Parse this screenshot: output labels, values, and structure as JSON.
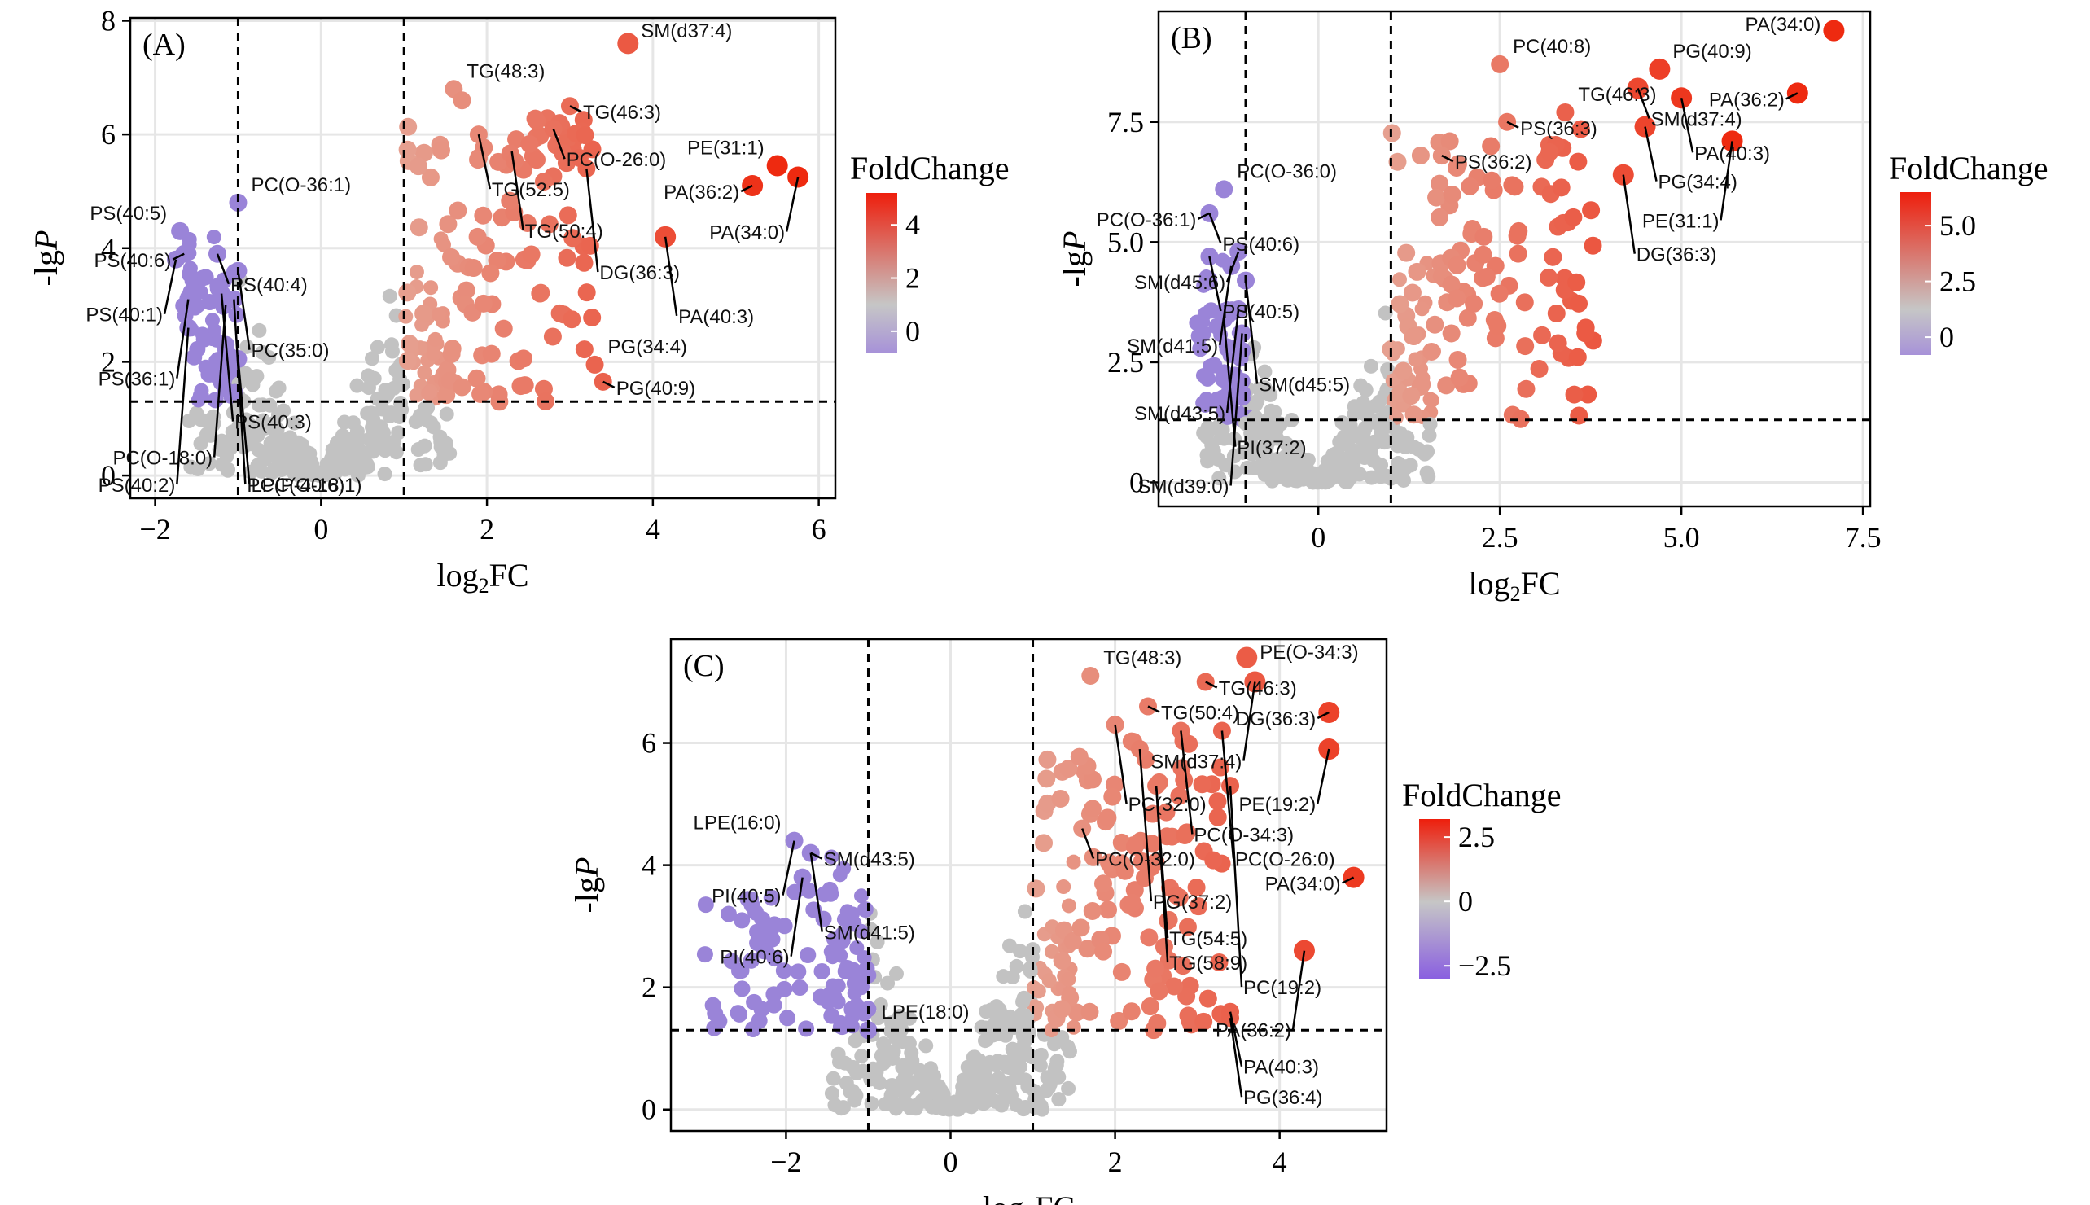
{
  "figure": {
    "x_label_base": "log",
    "x_label_sub": "2",
    "x_label_tail": "FC",
    "y_label_main": "-lg",
    "y_label_italic": "P"
  },
  "chart_data": [
    {
      "type": "scatter",
      "panel": "(A)",
      "xlim": [
        -2.3,
        6.2
      ],
      "ylim": [
        -0.4,
        8.05
      ],
      "xticks": [
        -2,
        0,
        2,
        4,
        6
      ],
      "xtick_labels": [
        "−2",
        "0",
        "2",
        "4",
        "6"
      ],
      "yticks": [
        0,
        2,
        4,
        6,
        8
      ],
      "ytick_labels": [
        "0",
        "2",
        "4",
        "6",
        "8"
      ],
      "thresholds": {
        "x": [
          -1,
          1
        ],
        "y": 1.3
      },
      "grid": true,
      "legend": {
        "title": "FoldChange",
        "placement": "right",
        "range": [
          -0.8,
          5.2
        ],
        "ticks": [
          0,
          2,
          4
        ],
        "tick_labels": [
          "0",
          "2",
          "4"
        ]
      },
      "points": [
        [
          3.7,
          7.6
        ],
        [
          2.8,
          6.1
        ],
        [
          3.0,
          6.5
        ],
        [
          3.2,
          5.4
        ],
        [
          1.6,
          6.8
        ],
        [
          1.7,
          6.6
        ],
        [
          1.9,
          6.0
        ],
        [
          5.5,
          5.45
        ],
        [
          5.2,
          5.1
        ],
        [
          5.75,
          5.25
        ],
        [
          4.15,
          4.2
        ],
        [
          3.3,
          1.95
        ],
        [
          3.4,
          1.65
        ],
        [
          -1.7,
          4.3
        ],
        [
          -1.65,
          3.9
        ],
        [
          -1.0,
          4.8
        ],
        [
          -1.75,
          3.8
        ],
        [
          -1.25,
          3.9
        ],
        [
          -1.0,
          3.6
        ],
        [
          -1.2,
          3.2
        ],
        [
          -1.05,
          3.1
        ],
        [
          -1.6,
          3.1
        ],
        [
          -1.6,
          2.6
        ],
        [
          -1.15,
          2.3
        ],
        [
          -1.0,
          2.05
        ]
      ],
      "labels": [
        {
          "text": "SM(d37:4)",
          "x": 3.7,
          "y": 7.6
        },
        {
          "text": "TG(48:3)",
          "x": 1.6,
          "y": 6.8
        },
        {
          "text": "TG(46:3)",
          "x": 3.0,
          "y": 6.5
        },
        {
          "text": "PC(O-26:0)",
          "x": 2.8,
          "y": 6.1
        },
        {
          "text": "TG(52:5)",
          "x": 1.9,
          "y": 6.0
        },
        {
          "text": "TG(50:4)",
          "x": 2.3,
          "y": 5.7
        },
        {
          "text": "DG(36:3)",
          "x": 3.2,
          "y": 5.4
        },
        {
          "text": "PE(31:1)",
          "x": 5.5,
          "y": 5.45
        },
        {
          "text": "PA(36:2)",
          "x": 5.2,
          "y": 5.1
        },
        {
          "text": "PA(34:0)",
          "x": 5.75,
          "y": 5.25
        },
        {
          "text": "PA(40:3)",
          "x": 4.15,
          "y": 4.2
        },
        {
          "text": "PG(34:4)",
          "x": 3.3,
          "y": 1.95
        },
        {
          "text": "PG(40:9)",
          "x": 3.4,
          "y": 1.65
        },
        {
          "text": "PS(40:5)",
          "x": -1.7,
          "y": 4.3
        },
        {
          "text": "PC(O-36:1)",
          "x": -1.0,
          "y": 4.8
        },
        {
          "text": "PS(40:6)",
          "x": -1.65,
          "y": 3.9
        },
        {
          "text": "PS(40:4)",
          "x": -1.25,
          "y": 3.9
        },
        {
          "text": "PS(40:1)",
          "x": -1.75,
          "y": 3.8
        },
        {
          "text": "PC(35:0)",
          "x": -1.0,
          "y": 3.6
        },
        {
          "text": "PS(36:1)",
          "x": -1.6,
          "y": 3.1
        },
        {
          "text": "PS(40:3)",
          "x": -1.2,
          "y": 3.2
        },
        {
          "text": "PC(O-18:0)",
          "x": -1.15,
          "y": 3.0
        },
        {
          "text": "PC(P-40:6)",
          "x": -1.05,
          "y": 3.1
        },
        {
          "text": "PS(40:2)",
          "x": -1.6,
          "y": 2.6
        },
        {
          "text": "LPC(O-18:1)",
          "x": -1.0,
          "y": 2.05
        }
      ]
    },
    {
      "type": "scatter",
      "panel": "(B)",
      "xlim": [
        -2.2,
        7.6
      ],
      "ylim": [
        -0.5,
        9.8
      ],
      "xticks": [
        0,
        2.5,
        5.0,
        7.5
      ],
      "xtick_labels": [
        "0",
        "2.5",
        "5.0",
        "7.5"
      ],
      "yticks": [
        0,
        2.5,
        5.0,
        7.5
      ],
      "ytick_labels": [
        "0",
        "2.5",
        "5.0",
        "7.5"
      ],
      "thresholds": {
        "x": [
          -1,
          1
        ],
        "y": 1.3
      },
      "grid": true,
      "legend": {
        "title": "FoldChange",
        "placement": "right",
        "range": [
          -0.8,
          6.5
        ],
        "ticks": [
          0,
          2.5,
          5.0
        ],
        "tick_labels": [
          "0",
          "2.5",
          "5.0"
        ]
      },
      "points": [
        [
          7.1,
          9.4
        ],
        [
          6.6,
          8.1
        ],
        [
          4.7,
          8.6
        ],
        [
          5.0,
          8.0
        ],
        [
          4.4,
          8.2
        ],
        [
          4.5,
          7.4
        ],
        [
          5.7,
          7.1
        ],
        [
          4.2,
          6.4
        ],
        [
          2.5,
          8.7
        ],
        [
          3.4,
          7.7
        ],
        [
          2.6,
          7.5
        ],
        [
          1.7,
          6.8
        ],
        [
          -1.3,
          6.1
        ],
        [
          -1.5,
          5.6
        ],
        [
          -1.5,
          4.7
        ],
        [
          -1.1,
          4.8
        ],
        [
          -1.2,
          4.5
        ],
        [
          -1.0,
          4.2
        ],
        [
          -1.1,
          3.6
        ],
        [
          -1.3,
          3.4
        ],
        [
          -1.6,
          3.1
        ],
        [
          -1.05,
          3.1
        ]
      ],
      "labels": [
        {
          "text": "PA(34:0)",
          "x": 7.1,
          "y": 9.4
        },
        {
          "text": "PC(40:8)",
          "x": 2.5,
          "y": 8.7
        },
        {
          "text": "PG(40:9)",
          "x": 4.7,
          "y": 8.6
        },
        {
          "text": "TG(46:3)",
          "x": 3.4,
          "y": 7.7
        },
        {
          "text": "PA(36:2)",
          "x": 6.6,
          "y": 8.1
        },
        {
          "text": "PS(36:3)",
          "x": 2.6,
          "y": 7.5
        },
        {
          "text": "SM(d37:4)",
          "x": 4.4,
          "y": 8.2
        },
        {
          "text": "PA(40:3)",
          "x": 5.0,
          "y": 8.0
        },
        {
          "text": "PG(34:4)",
          "x": 4.5,
          "y": 7.4
        },
        {
          "text": "PS(36:2)",
          "x": 1.7,
          "y": 6.8
        },
        {
          "text": "PE(31:1)",
          "x": 5.7,
          "y": 7.1
        },
        {
          "text": "DG(36:3)",
          "x": 4.2,
          "y": 6.4
        },
        {
          "text": "PC(O-36:0)",
          "x": -1.3,
          "y": 6.1
        },
        {
          "text": "PC(O-36:1)",
          "x": -1.5,
          "y": 5.6
        },
        {
          "text": "PS(40:6)",
          "x": -1.5,
          "y": 5.6
        },
        {
          "text": "SM(d45:6)",
          "x": -1.1,
          "y": 4.8
        },
        {
          "text": "PS(40:5)",
          "x": -1.5,
          "y": 4.7
        },
        {
          "text": "SM(d41:5)",
          "x": -1.2,
          "y": 4.5
        },
        {
          "text": "SM(d45:5)",
          "x": -1.0,
          "y": 4.2
        },
        {
          "text": "SM(d43:5)",
          "x": -1.1,
          "y": 3.6
        },
        {
          "text": "PI(37:2)",
          "x": -1.3,
          "y": 3.4
        },
        {
          "text": "SM(d39:0)",
          "x": -1.05,
          "y": 3.1
        }
      ]
    },
    {
      "type": "scatter",
      "panel": "(C)",
      "xlim": [
        -3.4,
        5.3
      ],
      "ylim": [
        -0.35,
        7.7
      ],
      "xticks": [
        -2,
        0,
        2,
        4
      ],
      "xtick_labels": [
        "−2",
        "0",
        "2",
        "4"
      ],
      "yticks": [
        0,
        2,
        4,
        6
      ],
      "ytick_labels": [
        "0",
        "2",
        "4",
        "6"
      ],
      "thresholds": {
        "x": [
          -1,
          1
        ],
        "y": 1.3
      },
      "grid": true,
      "legend": {
        "title": "FoldChange",
        "placement": "right",
        "range": [
          -3.0,
          3.2
        ],
        "ticks": [
          2.5,
          0,
          -2.5
        ],
        "tick_labels": [
          "2.5",
          "0",
          "−2.5"
        ]
      },
      "points": [
        [
          1.7,
          7.1
        ],
        [
          3.1,
          7.0
        ],
        [
          3.6,
          7.4
        ],
        [
          3.7,
          7.0
        ],
        [
          2.0,
          6.3
        ],
        [
          2.4,
          6.6
        ],
        [
          3.3,
          6.2
        ],
        [
          2.8,
          6.2
        ],
        [
          2.3,
          5.9
        ],
        [
          4.6,
          6.5
        ],
        [
          4.6,
          5.9
        ],
        [
          2.5,
          5.3
        ],
        [
          3.4,
          5.3
        ],
        [
          1.6,
          4.6
        ],
        [
          4.9,
          3.8
        ],
        [
          4.3,
          2.6
        ],
        [
          3.4,
          1.6
        ],
        [
          3.4,
          1.5
        ],
        [
          -1.9,
          4.4
        ],
        [
          -1.7,
          4.2
        ],
        [
          -1.8,
          3.8
        ],
        [
          -1.0,
          1.3
        ]
      ],
      "labels": [
        {
          "text": "TG(48:3)",
          "x": 1.7,
          "y": 7.1
        },
        {
          "text": "TG(46:3)",
          "x": 3.1,
          "y": 7.0
        },
        {
          "text": "PE(O-34:3)",
          "x": 3.6,
          "y": 7.4
        },
        {
          "text": "TG(50:4)",
          "x": 2.4,
          "y": 6.6
        },
        {
          "text": "SM(d37:4)",
          "x": 3.7,
          "y": 7.0
        },
        {
          "text": "PC(32:0)",
          "x": 2.0,
          "y": 6.3
        },
        {
          "text": "PC(O-34:3)",
          "x": 2.8,
          "y": 6.2
        },
        {
          "text": "PC(O-26:0)",
          "x": 3.3,
          "y": 6.2
        },
        {
          "text": "PG(37:2)",
          "x": 2.3,
          "y": 5.9
        },
        {
          "text": "DG(36:3)",
          "x": 4.6,
          "y": 6.5
        },
        {
          "text": "TG(54:5)",
          "x": 2.5,
          "y": 5.3
        },
        {
          "text": "PC(O-32:0)",
          "x": 1.6,
          "y": 4.6
        },
        {
          "text": "PE(19:2)",
          "x": 4.6,
          "y": 5.9
        },
        {
          "text": "TG(58:9)",
          "x": 2.5,
          "y": 5.3
        },
        {
          "text": "PC(19:2)",
          "x": 3.4,
          "y": 5.3
        },
        {
          "text": "LPE(16:0)",
          "x": -1.9,
          "y": 4.4
        },
        {
          "text": "SM(d43:5)",
          "x": -1.7,
          "y": 4.2
        },
        {
          "text": "PI(40:5)",
          "x": -1.9,
          "y": 4.4
        },
        {
          "text": "SM(d41:5)",
          "x": -1.7,
          "y": 4.2
        },
        {
          "text": "PI(40:6)",
          "x": -1.8,
          "y": 3.8
        },
        {
          "text": "PA(34:0)",
          "x": 4.9,
          "y": 3.8
        },
        {
          "text": "PA(36:2)",
          "x": 4.3,
          "y": 2.6
        },
        {
          "text": "PA(40:3)",
          "x": 3.4,
          "y": 1.6
        },
        {
          "text": "PG(36:4)",
          "x": 3.4,
          "y": 1.5
        },
        {
          "text": "LPE(18:0)",
          "x": -1.0,
          "y": 1.3
        }
      ]
    }
  ],
  "colors": {
    "down": "#9a84d8",
    "ns": "#c2c2c2",
    "up_low": "#e6a090",
    "up_high": "#ee2a10",
    "axis": "#000000",
    "grid": "#e6e6e6"
  }
}
